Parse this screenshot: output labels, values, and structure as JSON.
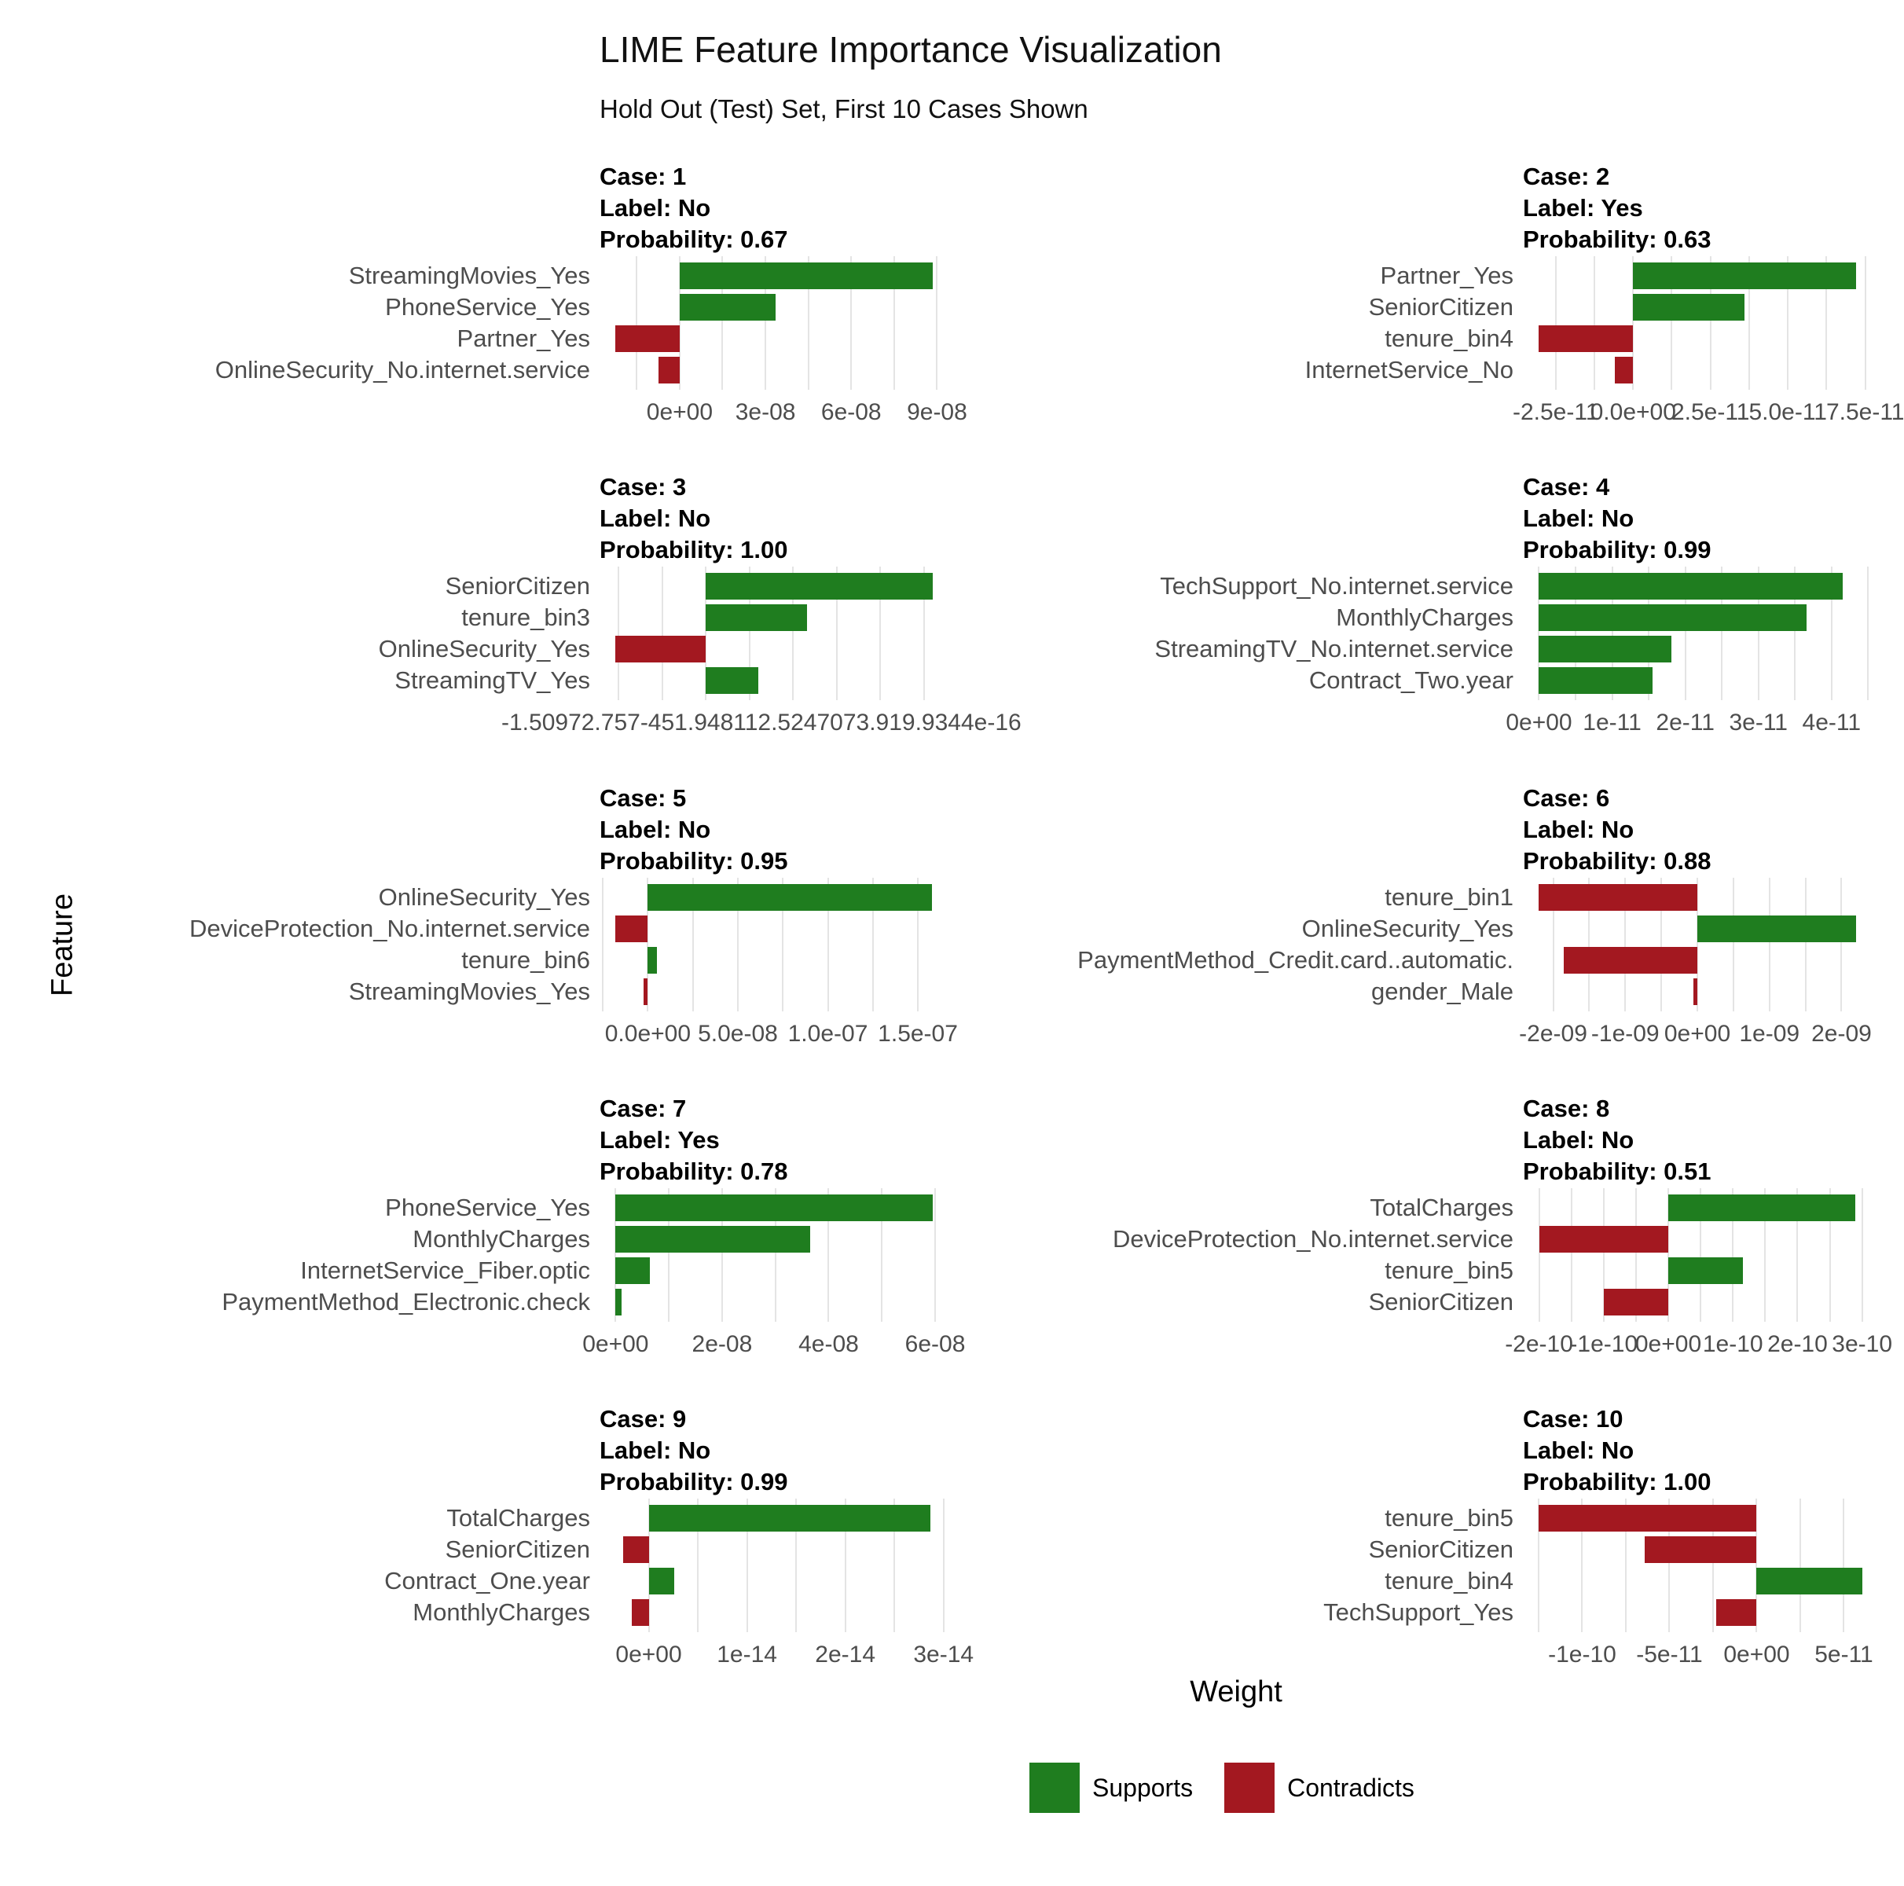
{
  "title": "LIME Feature Importance Visualization",
  "subtitle": "Hold Out (Test) Set, First 10 Cases Shown",
  "colors": {
    "supports": "#1f7d1f",
    "contradicts": "#a31820",
    "gridline": "#e4e4e4",
    "axis_text": "#4d4d4d"
  },
  "strip_prefixes": {
    "case": "Case:",
    "label": "Label:",
    "probability": "Probability:"
  },
  "legend": {
    "items": [
      {
        "label": "Supports",
        "color": "#1f7d1f"
      },
      {
        "label": "Contradicts",
        "color": "#a31820"
      }
    ]
  },
  "chart_data": {
    "type": "bar",
    "orientation": "horizontal",
    "title": "LIME Feature Importance Visualization",
    "subtitle": "Hold Out (Test) Set, First 10 Cases Shown",
    "xlabel": "Weight",
    "ylabel": "Feature",
    "legend_entries": [
      "Supports",
      "Contradicts"
    ],
    "legend_position": "bottom",
    "grid": "vertical-light-gray-on-white",
    "facets": [
      {
        "case": "1",
        "label": "No",
        "probability": "0.67",
        "xlim": [
          -2.8e-08,
          9.4e-08
        ],
        "grid": [
          -1.5e-08,
          0,
          1.5e-08,
          3e-08,
          4.5e-08,
          6e-08,
          7.5e-08,
          9e-08
        ],
        "ticks": [
          {
            "v": 0,
            "t": "0e+00"
          },
          {
            "v": 3e-08,
            "t": "3e-08"
          },
          {
            "v": 6e-08,
            "t": "6e-08"
          },
          {
            "v": 9e-08,
            "t": "9e-08"
          }
        ],
        "features": [
          {
            "f": "StreamingMovies_Yes",
            "w": 8.85e-08,
            "d": "Supports"
          },
          {
            "f": "PhoneService_Yes",
            "w": 3.35e-08,
            "d": "Supports"
          },
          {
            "f": "Partner_Yes",
            "w": -2.25e-08,
            "d": "Contradicts"
          },
          {
            "f": "OnlineSecurity_No.internet.service",
            "w": -7.5e-09,
            "d": "Contradicts"
          }
        ]
      },
      {
        "case": "2",
        "label": "Yes",
        "probability": "0.63",
        "xlim": [
          -3.56e-11,
          7.71e-11
        ],
        "grid": [
          -2.5e-11,
          -1.25e-11,
          0,
          1.25e-11,
          2.5e-11,
          3.75e-11,
          5e-11,
          6.25e-11,
          7.5e-11
        ],
        "ticks": [
          {
            "v": -2.5e-11,
            "t": "-2.5e-11"
          },
          {
            "v": 0,
            "t": "0.0e+00"
          },
          {
            "v": 2.5e-11,
            "t": "2.5e-11"
          },
          {
            "v": 5e-11,
            "t": "5.0e-11"
          },
          {
            "v": 7.5e-11,
            "t": "7.5e-11"
          }
        ],
        "features": [
          {
            "f": "Partner_Yes",
            "w": 7.2e-11,
            "d": "Supports"
          },
          {
            "f": "SeniorCitizen",
            "w": 3.6e-11,
            "d": "Supports"
          },
          {
            "f": "tenure_bin4",
            "w": -3.05e-11,
            "d": "Contradicts"
          },
          {
            "f": "InternetService_No",
            "w": -6e-12,
            "d": "Contradicts"
          }
        ]
      },
      {
        "case": "3",
        "label": "No",
        "probability": "1.00",
        "xlim": [
          -6.1e-16,
          1.39e-15
        ],
        "grid": [
          -5e-16,
          -2.5e-16,
          0,
          2.5e-16,
          5e-16,
          7.5e-16,
          1e-15,
          1.25e-15
        ],
        "ticks": [],
        "overlap_tick_text": "-1.50972.757-451.948112.5247073.919.9344e-16",
        "overlap_tick_offset": -125,
        "features": [
          {
            "f": "SeniorCitizen",
            "w": 1.3e-15,
            "d": "Supports"
          },
          {
            "f": "tenure_bin3",
            "w": 5.8e-16,
            "d": "Supports"
          },
          {
            "f": "OnlineSecurity_Yes",
            "w": -5.2e-16,
            "d": "Contradicts"
          },
          {
            "f": "StreamingTV_Yes",
            "w": 3e-16,
            "d": "Supports"
          }
        ]
      },
      {
        "case": "4",
        "label": "No",
        "probability": "0.99",
        "xlim": [
          -2.2e-12,
          4.55e-11
        ],
        "grid": [
          0,
          5e-12,
          1e-11,
          1.5e-11,
          2e-11,
          2.5e-11,
          3e-11,
          3.5e-11,
          4e-11,
          4.5e-11
        ],
        "ticks": [
          {
            "v": 0,
            "t": "0e+00"
          },
          {
            "v": 1e-11,
            "t": "1e-11"
          },
          {
            "v": 2e-11,
            "t": "2e-11"
          },
          {
            "v": 3e-11,
            "t": "3e-11"
          },
          {
            "v": 4e-11,
            "t": "4e-11"
          }
        ],
        "features": [
          {
            "f": "TechSupport_No.internet.service",
            "w": 4.15e-11,
            "d": "Supports"
          },
          {
            "f": "MonthlyCharges",
            "w": 3.66e-11,
            "d": "Supports"
          },
          {
            "f": "StreamingTV_No.internet.service",
            "w": 1.81e-11,
            "d": "Supports"
          },
          {
            "f": "Contract_Two.year",
            "w": 1.55e-11,
            "d": "Supports"
          }
        ]
      },
      {
        "case": "5",
        "label": "No",
        "probability": "0.95",
        "xlim": [
          -2.68e-08,
          1.67e-07
        ],
        "grid": [
          -2.5e-08,
          0,
          2.5e-08,
          5e-08,
          7.5e-08,
          1e-07,
          1.25e-07,
          1.5e-07
        ],
        "ticks": [
          {
            "v": 0,
            "t": "0.0e+00"
          },
          {
            "v": 5e-08,
            "t": "5.0e-08"
          },
          {
            "v": 1e-07,
            "t": "1.0e-07"
          },
          {
            "v": 1.5e-07,
            "t": "1.5e-07"
          }
        ],
        "features": [
          {
            "f": "OnlineSecurity_Yes",
            "w": 1.58e-07,
            "d": "Supports"
          },
          {
            "f": "DeviceProtection_No.internet.service",
            "w": -1.8e-08,
            "d": "Contradicts"
          },
          {
            "f": "tenure_bin6",
            "w": 5e-09,
            "d": "Supports"
          },
          {
            "f": "StreamingMovies_Yes",
            "w": -2.5e-09,
            "d": "Contradicts"
          }
        ]
      },
      {
        "case": "6",
        "label": "No",
        "probability": "0.88",
        "xlim": [
          -2.42e-09,
          2.42e-09
        ],
        "grid": [
          -2e-09,
          -1.5e-09,
          -1e-09,
          -5e-10,
          0,
          5e-10,
          1e-09,
          1.5e-09,
          2e-09
        ],
        "ticks": [
          {
            "v": -2e-09,
            "t": "-2e-09"
          },
          {
            "v": -1e-09,
            "t": "-1e-09"
          },
          {
            "v": 0,
            "t": "0e+00"
          },
          {
            "v": 1e-09,
            "t": "1e-09"
          },
          {
            "v": 2e-09,
            "t": "2e-09"
          }
        ],
        "features": [
          {
            "f": "tenure_bin1",
            "w": -2.2e-09,
            "d": "Contradicts"
          },
          {
            "f": "OnlineSecurity_Yes",
            "w": 2.2e-09,
            "d": "Supports"
          },
          {
            "f": "PaymentMethod_Credit.card..automatic.",
            "w": -1.85e-09,
            "d": "Contradicts"
          },
          {
            "f": "gender_Male",
            "w": -5e-11,
            "d": "Contradicts"
          }
        ]
      },
      {
        "case": "7",
        "label": "Yes",
        "probability": "0.78",
        "xlim": [
          -3e-09,
          6.25e-08
        ],
        "grid": [
          0,
          1e-08,
          2e-08,
          3e-08,
          4e-08,
          5e-08,
          6e-08
        ],
        "ticks": [
          {
            "v": 0,
            "t": "0e+00"
          },
          {
            "v": 2e-08,
            "t": "2e-08"
          },
          {
            "v": 4e-08,
            "t": "4e-08"
          },
          {
            "v": 6e-08,
            "t": "6e-08"
          }
        ],
        "features": [
          {
            "f": "PhoneService_Yes",
            "w": 5.95e-08,
            "d": "Supports"
          },
          {
            "f": "MonthlyCharges",
            "w": 3.65e-08,
            "d": "Supports"
          },
          {
            "f": "InternetService_Fiber.optic",
            "w": 6.5e-09,
            "d": "Supports"
          },
          {
            "f": "PaymentMethod_Electronic.check",
            "w": 1.2e-09,
            "d": "Supports"
          }
        ]
      },
      {
        "case": "8",
        "label": "No",
        "probability": "0.51",
        "xlim": [
          -2.25e-10,
          3.15e-10
        ],
        "grid": [
          -2e-10,
          -1.5e-10,
          -1e-10,
          -5e-11,
          0,
          5e-11,
          1e-10,
          1.5e-10,
          2e-10,
          2.5e-10,
          3e-10
        ],
        "ticks": [
          {
            "v": -2e-10,
            "t": "-2e-10"
          },
          {
            "v": -1e-10,
            "t": "-1e-10"
          },
          {
            "v": 0,
            "t": "0e+00"
          },
          {
            "v": 1e-10,
            "t": "1e-10"
          },
          {
            "v": 2e-10,
            "t": "2e-10"
          },
          {
            "v": 3e-10,
            "t": "3e-10"
          }
        ],
        "features": [
          {
            "f": "TotalCharges",
            "w": 2.9e-10,
            "d": "Supports"
          },
          {
            "f": "DeviceProtection_No.internet.service",
            "w": -2e-10,
            "d": "Contradicts"
          },
          {
            "f": "tenure_bin5",
            "w": 1.15e-10,
            "d": "Supports"
          },
          {
            "f": "SeniorCitizen",
            "w": -1e-10,
            "d": "Contradicts"
          }
        ]
      },
      {
        "case": "9",
        "label": "No",
        "probability": "0.99",
        "xlim": [
          -5e-15,
          3.05e-14
        ],
        "grid": [
          0,
          5e-15,
          1e-14,
          1.5e-14,
          2e-14,
          2.5e-14,
          3e-14
        ],
        "ticks": [
          {
            "v": 0,
            "t": "0e+00"
          },
          {
            "v": 1e-14,
            "t": "1e-14"
          },
          {
            "v": 2e-14,
            "t": "2e-14"
          },
          {
            "v": 3e-14,
            "t": "3e-14"
          }
        ],
        "features": [
          {
            "f": "TotalCharges",
            "w": 2.87e-14,
            "d": "Supports"
          },
          {
            "f": "SeniorCitizen",
            "w": -2.6e-15,
            "d": "Contradicts"
          },
          {
            "f": "Contract_One.year",
            "w": 2.6e-15,
            "d": "Supports"
          },
          {
            "f": "MonthlyCharges",
            "w": -1.7e-15,
            "d": "Contradicts"
          }
        ]
      },
      {
        "case": "10",
        "label": "No",
        "probability": "1.00",
        "xlim": [
          -1.34e-10,
          6.6e-11
        ],
        "grid": [
          -1.25e-10,
          -1e-10,
          -7.5e-11,
          -5e-11,
          -2.5e-11,
          0,
          2.5e-11,
          5e-11
        ],
        "ticks": [
          {
            "v": -1e-10,
            "t": "-1e-10"
          },
          {
            "v": -5e-11,
            "t": "-5e-11"
          },
          {
            "v": 0,
            "t": "0e+00"
          },
          {
            "v": 5e-11,
            "t": "5e-11"
          }
        ],
        "features": [
          {
            "f": "tenure_bin5",
            "w": -1.25e-10,
            "d": "Contradicts"
          },
          {
            "f": "SeniorCitizen",
            "w": -6.4e-11,
            "d": "Contradicts"
          },
          {
            "f": "tenure_bin4",
            "w": 6.05e-11,
            "d": "Supports"
          },
          {
            "f": "TechSupport_Yes",
            "w": -2.3e-11,
            "d": "Contradicts"
          }
        ]
      }
    ]
  }
}
